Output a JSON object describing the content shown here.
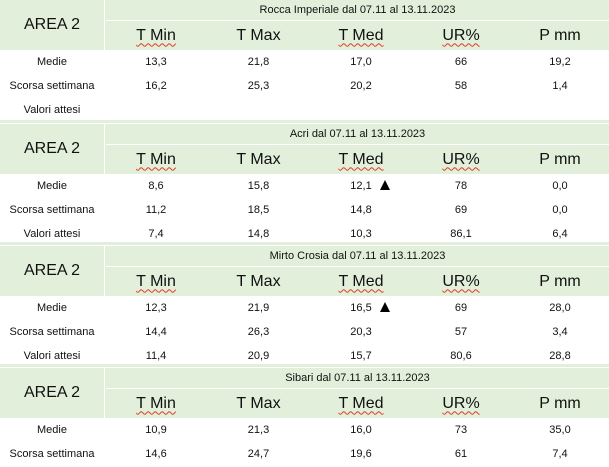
{
  "columns": [
    "T Min",
    "T Max",
    "T Med",
    "UR%",
    "P mm"
  ],
  "stations": [
    {
      "area": "AREA 2",
      "title": "Rocca Imperiale  dal 07.11 al 13.11.2023",
      "rows": [
        {
          "label": "Medie",
          "values": [
            "13,3",
            "21,8",
            "17,0",
            "66",
            "19,2"
          ]
        },
        {
          "label": "Scorsa settimana",
          "values": [
            "16,2",
            "25,3",
            "20,2",
            "58",
            "1,4"
          ]
        },
        {
          "label": "Valori attesi",
          "values": [
            "",
            "",
            "",
            "",
            ""
          ]
        }
      ]
    },
    {
      "area": "AREA 2",
      "title": "Acri dal 07.11 al 13.11.2023",
      "rows": [
        {
          "label": "Medie",
          "values": [
            "8,6",
            "15,8",
            "12,1",
            "78",
            "0,0"
          ],
          "marker": "up-triangle-icon"
        },
        {
          "label": "Scorsa settimana",
          "values": [
            "11,2",
            "18,5",
            "14,8",
            "69",
            "0,0"
          ]
        },
        {
          "label": "Valori attesi",
          "values": [
            "7,4",
            "14,8",
            "10,3",
            "86,1",
            "6,4"
          ]
        }
      ]
    },
    {
      "area": "AREA 2",
      "title": "Mirto Crosia dal 07.11 al 13.11.2023",
      "rows": [
        {
          "label": "Medie",
          "values": [
            "12,3",
            "21,9",
            "16,5",
            "69",
            "28,0"
          ],
          "marker": "up-triangle-icon"
        },
        {
          "label": "Scorsa settimana",
          "values": [
            "14,4",
            "26,3",
            "20,3",
            "57",
            "3,4"
          ]
        },
        {
          "label": "Valori attesi",
          "values": [
            "11,4",
            "20,9",
            "15,7",
            "80,6",
            "28,8"
          ]
        }
      ]
    },
    {
      "area": "AREA 2",
      "title": "Sibari dal 07.11 al 13.11.2023",
      "rows": [
        {
          "label": "Medie",
          "values": [
            "10,9",
            "21,3",
            "16,0",
            "73",
            "35,0"
          ]
        },
        {
          "label": "Scorsa settimana",
          "values": [
            "14,6",
            "24,7",
            "19,6",
            "61",
            "7,4"
          ]
        }
      ]
    }
  ],
  "colors": {
    "header_bg": "#e2efda",
    "spell_underline": "#e03b24"
  }
}
